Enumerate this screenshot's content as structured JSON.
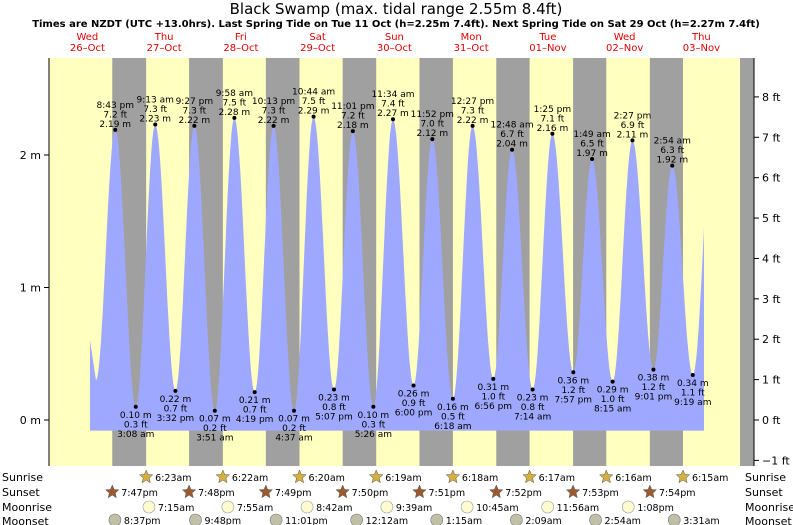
{
  "chart_data": {
    "type": "area",
    "title": "Black Swamp (max. tidal range 2.55m 8.4ft)",
    "subtitle": "Times are NZDT (UTC +13.0hrs). Last Spring Tide on Tue 11 Oct (h=2.25m 7.4ft). Next Spring Tide on Sat 29 Oct (h=2.27m 7.4ft)",
    "days": [
      {
        "dow": "Wed",
        "date": "26–Oct"
      },
      {
        "dow": "Thu",
        "date": "27–Oct"
      },
      {
        "dow": "Fri",
        "date": "28–Oct"
      },
      {
        "dow": "Sat",
        "date": "29–Oct"
      },
      {
        "dow": "Sun",
        "date": "30–Oct"
      },
      {
        "dow": "Mon",
        "date": "31–Oct"
      },
      {
        "dow": "Tue",
        "date": "01–Nov"
      },
      {
        "dow": "Wed",
        "date": "02–Nov"
      },
      {
        "dow": "Thu",
        "date": "03–Nov"
      }
    ],
    "y_left": {
      "unit": "m",
      "ticks": [
        "0 m",
        "1 m",
        "2 m"
      ],
      "values": [
        0,
        1,
        2
      ]
    },
    "y_right": {
      "unit": "ft",
      "ticks": [
        "−1 ft",
        "0 ft",
        "1 ft",
        "2 ft",
        "3 ft",
        "4 ft",
        "5 ft",
        "6 ft",
        "7 ft",
        "8 ft"
      ],
      "values": [
        -1,
        0,
        1,
        2,
        3,
        4,
        5,
        6,
        7,
        8
      ]
    },
    "ylim_m": [
      -0.3,
      2.9
    ],
    "tides": [
      {
        "day": 0,
        "time": "8:43 pm",
        "m": "2.19 m",
        "ft": "7.2 ft",
        "h": 2.19,
        "type": "high"
      },
      {
        "day": 1,
        "time": "3:08 am",
        "m": "0.10 m",
        "ft": "0.3 ft",
        "h": 0.1,
        "type": "low"
      },
      {
        "day": 1,
        "time": "9:13 am",
        "m": "2.23 m",
        "ft": "7.3 ft",
        "h": 2.23,
        "type": "high"
      },
      {
        "day": 1,
        "time": "3:32 pm",
        "m": "0.22 m",
        "ft": "0.7 ft",
        "h": 0.22,
        "type": "low"
      },
      {
        "day": 1,
        "time": "9:27 pm",
        "m": "2.22 m",
        "ft": "7.3 ft",
        "h": 2.22,
        "type": "high"
      },
      {
        "day": 2,
        "time": "3:51 am",
        "m": "0.07 m",
        "ft": "0.2 ft",
        "h": 0.07,
        "type": "low"
      },
      {
        "day": 2,
        "time": "9:58 am",
        "m": "2.28 m",
        "ft": "7.5 ft",
        "h": 2.28,
        "type": "high"
      },
      {
        "day": 2,
        "time": "4:19 pm",
        "m": "0.21 m",
        "ft": "0.7 ft",
        "h": 0.21,
        "type": "low"
      },
      {
        "day": 2,
        "time": "10:13 pm",
        "m": "2.22 m",
        "ft": "7.3 ft",
        "h": 2.22,
        "type": "high"
      },
      {
        "day": 3,
        "time": "4:37 am",
        "m": "0.07 m",
        "ft": "0.2 ft",
        "h": 0.07,
        "type": "low"
      },
      {
        "day": 3,
        "time": "10:44 am",
        "m": "2.29 m",
        "ft": "7.5 ft",
        "h": 2.29,
        "type": "high"
      },
      {
        "day": 3,
        "time": "5:07 pm",
        "m": "0.23 m",
        "ft": "0.8 ft",
        "h": 0.23,
        "type": "low"
      },
      {
        "day": 3,
        "time": "11:01 pm",
        "m": "2.18 m",
        "ft": "7.2 ft",
        "h": 2.18,
        "type": "high"
      },
      {
        "day": 4,
        "time": "5:26 am",
        "m": "0.10 m",
        "ft": "0.3 ft",
        "h": 0.1,
        "type": "low"
      },
      {
        "day": 4,
        "time": "11:34 am",
        "m": "2.27 m",
        "ft": "7.4 ft",
        "h": 2.27,
        "type": "high"
      },
      {
        "day": 4,
        "time": "6:00 pm",
        "m": "0.26 m",
        "ft": "0.9 ft",
        "h": 0.26,
        "type": "low"
      },
      {
        "day": 4,
        "time": "11:52 pm",
        "m": "2.12 m",
        "ft": "7.0 ft",
        "h": 2.12,
        "type": "high"
      },
      {
        "day": 5,
        "time": "6:18 am",
        "m": "0.16 m",
        "ft": "0.5 ft",
        "h": 0.16,
        "type": "low"
      },
      {
        "day": 5,
        "time": "12:27 pm",
        "m": "2.22 m",
        "ft": "7.3 ft",
        "h": 2.22,
        "type": "high"
      },
      {
        "day": 5,
        "time": "6:56 pm",
        "m": "0.31 m",
        "ft": "1.0 ft",
        "h": 0.31,
        "type": "low"
      },
      {
        "day": 6,
        "time": "12:48 am",
        "m": "2.04 m",
        "ft": "6.7 ft",
        "h": 2.04,
        "type": "high"
      },
      {
        "day": 6,
        "time": "7:14 am",
        "m": "0.23 m",
        "ft": "0.8 ft",
        "h": 0.23,
        "type": "low"
      },
      {
        "day": 6,
        "time": "1:25 pm",
        "m": "2.16 m",
        "ft": "7.1 ft",
        "h": 2.16,
        "type": "high"
      },
      {
        "day": 6,
        "time": "7:57 pm",
        "m": "0.36 m",
        "ft": "1.2 ft",
        "h": 0.36,
        "type": "low"
      },
      {
        "day": 7,
        "time": "1:49 am",
        "m": "1.97 m",
        "ft": "6.5 ft",
        "h": 1.97,
        "type": "high"
      },
      {
        "day": 7,
        "time": "8:15 am",
        "m": "0.29 m",
        "ft": "1.0 ft",
        "h": 0.29,
        "type": "low"
      },
      {
        "day": 7,
        "time": "2:27 pm",
        "m": "2.11 m",
        "ft": "6.9 ft",
        "h": 2.11,
        "type": "high"
      },
      {
        "day": 7,
        "time": "9:01 pm",
        "m": "0.38 m",
        "ft": "1.2 ft",
        "h": 0.38,
        "type": "low"
      },
      {
        "day": 8,
        "time": "2:54 am",
        "m": "1.92 m",
        "ft": "6.3 ft",
        "h": 1.92,
        "type": "high"
      },
      {
        "day": 8,
        "time": "9:19 am",
        "m": "0.34 m",
        "ft": "1.1 ft",
        "h": 0.34,
        "type": "low"
      }
    ],
    "sun_moon": {
      "labels": {
        "sunrise": "Sunrise",
        "sunset": "Sunset",
        "moonrise": "Moonrise",
        "moonset": "Moonset"
      },
      "sunrise": [
        {
          "day": 1,
          "time": "6:23am"
        },
        {
          "day": 2,
          "time": "6:22am"
        },
        {
          "day": 3,
          "time": "6:20am"
        },
        {
          "day": 4,
          "time": "6:19am"
        },
        {
          "day": 5,
          "time": "6:18am"
        },
        {
          "day": 6,
          "time": "6:17am"
        },
        {
          "day": 7,
          "time": "6:16am"
        },
        {
          "day": 8,
          "time": "6:15am"
        }
      ],
      "sunset": [
        {
          "day": 0,
          "time": "7:47pm"
        },
        {
          "day": 1,
          "time": "7:48pm"
        },
        {
          "day": 2,
          "time": "7:49pm"
        },
        {
          "day": 3,
          "time": "7:50pm"
        },
        {
          "day": 4,
          "time": "7:51pm"
        },
        {
          "day": 5,
          "time": "7:52pm"
        },
        {
          "day": 6,
          "time": "7:53pm"
        },
        {
          "day": 7,
          "time": "7:54pm"
        }
      ],
      "moonrise": [
        {
          "day": 1,
          "time": "7:15am"
        },
        {
          "day": 2,
          "time": "7:55am"
        },
        {
          "day": 3,
          "time": "8:42am"
        },
        {
          "day": 4,
          "time": "9:39am"
        },
        {
          "day": 5,
          "time": "10:45am"
        },
        {
          "day": 6,
          "time": "11:56am"
        },
        {
          "day": 7,
          "time": "1:08pm"
        }
      ],
      "moonset": [
        {
          "day": 0,
          "time": "8:37pm"
        },
        {
          "day": 1,
          "time": "9:48pm"
        },
        {
          "day": 2,
          "time": "11:01pm"
        },
        {
          "day": 4,
          "time": "12:12am"
        },
        {
          "day": 5,
          "time": "1:15am"
        },
        {
          "day": 6,
          "time": "2:09am"
        },
        {
          "day": 7,
          "time": "2:54am"
        },
        {
          "day": 8,
          "time": "3:31am"
        }
      ]
    },
    "colors": {
      "day": "#ffffc0",
      "night": "#a0a0a0",
      "tide": "#9fa8ff",
      "day_label": "#e00000",
      "sun_icon": "#d4b040",
      "sunset_icon": "#9a5a30",
      "moonrise_icon": "#fffbd0",
      "moonset_icon": "#c0c0a8"
    }
  }
}
